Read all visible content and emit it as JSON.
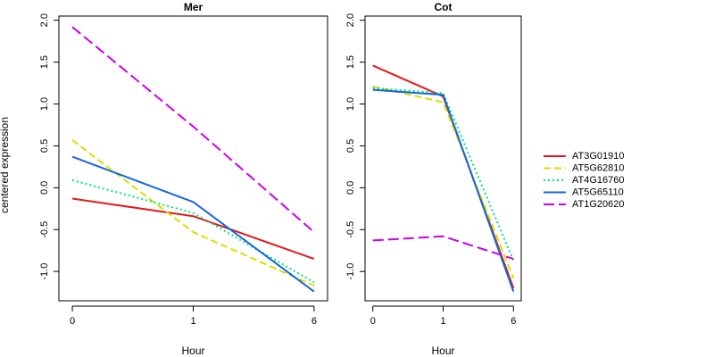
{
  "chart_data": {
    "type": "line",
    "ylabel": "centered expression",
    "xlabel": "Hour",
    "x_categories": [
      "0",
      "1",
      "6"
    ],
    "ylim": [
      -1.35,
      2.05
    ],
    "yticks": [
      -1.0,
      -0.5,
      0.0,
      0.5,
      1.0,
      1.5,
      2.0
    ],
    "ytick_labels": [
      "-1.0",
      "-0.5",
      "0.0",
      "0.5",
      "1.0",
      "1.5",
      "2.0"
    ],
    "series_styles": [
      {
        "name": "AT3G01910",
        "color": "#e31a1c",
        "dash": "solid"
      },
      {
        "name": "AT5G62810",
        "color": "#d8e000",
        "dash": "dashed"
      },
      {
        "name": "AT4G16760",
        "color": "#00e676",
        "dash": "dotted"
      },
      {
        "name": "AT5G65110",
        "color": "#1565e0",
        "dash": "solid"
      },
      {
        "name": "AT1G20620",
        "color": "#cc00ee",
        "dash": "longdash"
      }
    ],
    "panels": [
      {
        "title": "Mer",
        "series": [
          {
            "name": "AT3G01910",
            "values": [
              -0.13,
              -0.34,
              -0.85
            ]
          },
          {
            "name": "AT5G62810",
            "values": [
              0.57,
              -0.53,
              -1.17
            ]
          },
          {
            "name": "AT4G16760",
            "values": [
              0.09,
              -0.3,
              -1.13
            ]
          },
          {
            "name": "AT5G65110",
            "values": [
              0.37,
              -0.17,
              -1.24
            ]
          },
          {
            "name": "AT1G20620",
            "values": [
              1.92,
              0.73,
              -0.53
            ]
          }
        ]
      },
      {
        "title": "Cot",
        "series": [
          {
            "name": "AT3G01910",
            "values": [
              1.46,
              1.09,
              -1.2
            ]
          },
          {
            "name": "AT5G62810",
            "values": [
              1.21,
              1.02,
              -1.08
            ]
          },
          {
            "name": "AT4G16760",
            "values": [
              1.19,
              1.13,
              -0.87
            ]
          },
          {
            "name": "AT5G65110",
            "values": [
              1.17,
              1.11,
              -1.24
            ]
          },
          {
            "name": "AT1G20620",
            "values": [
              -0.63,
              -0.58,
              -0.85
            ]
          }
        ]
      }
    ],
    "legend": {
      "placement": "right",
      "entries": [
        "AT3G01910",
        "AT5G62810",
        "AT4G16760",
        "AT5G65110",
        "AT1G20620"
      ]
    }
  }
}
